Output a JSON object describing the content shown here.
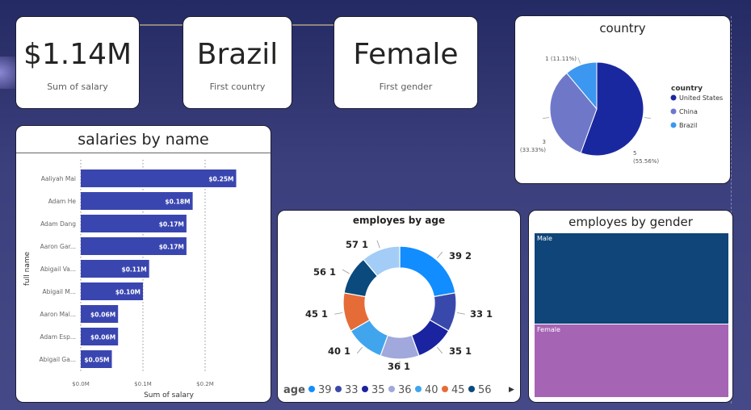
{
  "kpis": [
    {
      "value": "$1.14M",
      "label": "Sum of salary"
    },
    {
      "value": "Brazil",
      "label": "First country"
    },
    {
      "value": "Female",
      "label": "First gender"
    }
  ],
  "colors": {
    "background": "#2e3370",
    "bar": "#3a46b0",
    "united_states": "#1a28a0",
    "china": "#6f78c8",
    "brazil": "#3b97ef",
    "male": "#0f4578",
    "female": "#a664b4"
  },
  "country_chart": {
    "title": "country",
    "legend_title": "country",
    "legend": [
      {
        "label": "United States",
        "color": "#1a28a0"
      },
      {
        "label": "China",
        "color": "#6f78c8"
      },
      {
        "label": "Brazil",
        "color": "#3b97ef"
      }
    ]
  },
  "salary_chart": {
    "title": "salaries by name",
    "ylabel": "full name",
    "xlabel": "Sum of salary",
    "xticks": [
      "$0.0M",
      "$0.1M",
      "$0.2M"
    ]
  },
  "age_chart": {
    "title": "employes by age",
    "legend_title": "age"
  },
  "gender_chart": {
    "title": "employes by gender"
  },
  "chart_data": [
    {
      "type": "pie",
      "title": "country",
      "categories": [
        "United States",
        "China",
        "Brazil"
      ],
      "values": [
        5,
        3,
        1
      ],
      "data_labels": [
        "5\n(55.56%)",
        "3\n(33.33%)",
        "1 (11.11%)"
      ],
      "colors": [
        "#1a28a0",
        "#6f78c8",
        "#3b97ef"
      ],
      "legend": "right"
    },
    {
      "type": "bar",
      "orientation": "horizontal",
      "title": "salaries by name",
      "xlabel": "Sum of salary",
      "ylabel": "full name",
      "categories": [
        "Aaliyah Mai",
        "Adam He",
        "Adam Dang",
        "Aaron Gar...",
        "Abigail Va...",
        "Abigail M...",
        "Aaron Mal...",
        "Adam Esp...",
        "Abigail Ga..."
      ],
      "values": [
        0.25,
        0.18,
        0.17,
        0.17,
        0.11,
        0.1,
        0.06,
        0.06,
        0.05
      ],
      "data_labels": [
        "$0.25M",
        "$0.18M",
        "$0.17M",
        "$0.17M",
        "$0.11M",
        "$0.10M",
        "$0.06M",
        "$0.06M",
        "$0.05M"
      ],
      "xticks": [
        "$0.0M",
        "$0.1M",
        "$0.2M"
      ],
      "xlim": [
        0,
        0.3
      ],
      "grid": true
    },
    {
      "type": "pie",
      "subtype": "donut",
      "title": "employes by age",
      "categories": [
        "39",
        "33",
        "35",
        "36",
        "40",
        "45",
        "56",
        "57"
      ],
      "values": [
        2,
        1,
        1,
        1,
        1,
        1,
        1,
        1
      ],
      "data_labels": [
        "39 2",
        "33 1",
        "35 1",
        "36 1",
        "40 1",
        "45 1",
        "56 1",
        "57 1"
      ],
      "colors": [
        "#118dff",
        "#3949ab",
        "#1a23a0",
        "#a0a8dc",
        "#41a5ee",
        "#e66c37",
        "#0a4a7c",
        "#a3cdf7"
      ],
      "legend": "bottom",
      "legend_items": [
        "39",
        "33",
        "35",
        "36",
        "40",
        "45",
        "56"
      ]
    },
    {
      "type": "treemap",
      "title": "employes by gender",
      "categories": [
        "Male",
        "Female"
      ],
      "values": [
        5,
        4
      ],
      "colors": [
        "#0f4578",
        "#a664b4"
      ]
    }
  ]
}
